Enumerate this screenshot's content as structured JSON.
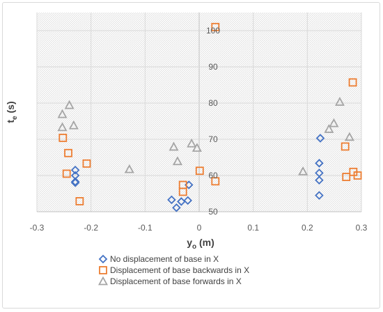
{
  "chart_data": {
    "type": "scatter",
    "xlabel": {
      "main": "y",
      "sub": "o",
      "unit": " (m)"
    },
    "ylabel": {
      "main": "t",
      "sub": "e",
      "unit": " (s)"
    },
    "xlim": [
      -0.3,
      0.3
    ],
    "ylim": [
      50,
      105
    ],
    "x_ticks": [
      -0.3,
      -0.2,
      -0.1,
      0,
      0.1,
      0.2,
      0.3
    ],
    "x_tick_labels": [
      "-0.3",
      "-0.2",
      "-0.1",
      "0",
      "0.1",
      "0.2",
      "0.3"
    ],
    "y_ticks": [
      50,
      60,
      70,
      80,
      90,
      100
    ],
    "y_tick_labels": [
      "50",
      "60",
      "70",
      "80",
      "90",
      "100"
    ],
    "grid": true,
    "legend_position": "bottom-left",
    "series": [
      {
        "name": "No displacement of base in X",
        "marker": "diamond",
        "color": "#4472c4",
        "points": [
          [
            -0.229,
            61.5
          ],
          [
            -0.229,
            60.0
          ],
          [
            -0.229,
            58.3
          ],
          [
            -0.229,
            58.0
          ],
          [
            -0.051,
            53.3
          ],
          [
            -0.042,
            51.1
          ],
          [
            -0.033,
            52.8
          ],
          [
            -0.021,
            53.1
          ],
          [
            -0.019,
            57.4
          ],
          [
            0.224,
            70.3
          ],
          [
            0.222,
            63.4
          ],
          [
            0.222,
            60.7
          ],
          [
            0.222,
            58.7
          ],
          [
            0.222,
            54.5
          ]
        ]
      },
      {
        "name": "Displacement of base backwards in X",
        "marker": "square",
        "color": "#ed7d31",
        "points": [
          [
            -0.252,
            70.4
          ],
          [
            -0.242,
            66.2
          ],
          [
            -0.245,
            60.5
          ],
          [
            -0.208,
            63.3
          ],
          [
            -0.221,
            52.9
          ],
          [
            -0.03,
            57.4
          ],
          [
            -0.03,
            55.5
          ],
          [
            0.001,
            61.3
          ],
          [
            0.03,
            58.4
          ],
          [
            0.03,
            101.0
          ],
          [
            0.27,
            68.0
          ],
          [
            0.272,
            59.6
          ],
          [
            0.284,
            85.7
          ],
          [
            0.285,
            61.0
          ],
          [
            0.293,
            60.0
          ]
        ]
      },
      {
        "name": "Displacement of base forwards in X",
        "marker": "triangle",
        "color": "#a5a5a5",
        "points": [
          [
            -0.253,
            76.9
          ],
          [
            -0.24,
            79.4
          ],
          [
            -0.253,
            73.3
          ],
          [
            -0.232,
            73.8
          ],
          [
            -0.129,
            61.7
          ],
          [
            -0.047,
            67.9
          ],
          [
            -0.04,
            63.9
          ],
          [
            -0.014,
            68.8
          ],
          [
            -0.004,
            67.6
          ],
          [
            0.192,
            61.1
          ],
          [
            0.24,
            72.8
          ],
          [
            0.249,
            74.4
          ],
          [
            0.26,
            80.3
          ],
          [
            0.278,
            70.6
          ]
        ]
      }
    ]
  }
}
